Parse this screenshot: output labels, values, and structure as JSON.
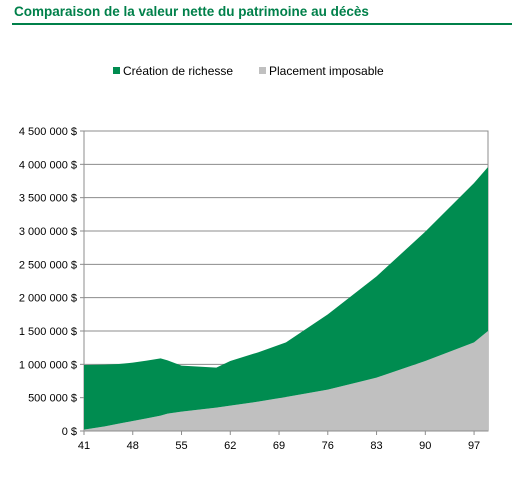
{
  "page": {
    "title": "Comparaison de la valeur nette du patrimoine au décès"
  },
  "chart_data": {
    "type": "area",
    "stacked": true,
    "x": [
      41,
      44,
      46,
      48,
      50,
      52,
      53,
      55,
      60,
      62,
      66,
      70,
      76,
      83,
      90,
      97,
      99
    ],
    "x_ticks": [
      "41",
      "48",
      "55",
      "62",
      "69",
      "76",
      "83",
      "90",
      "97"
    ],
    "series": [
      {
        "name": "Placement imposable",
        "color": "#c0c0c0",
        "values": [
          20000,
          70000,
          110000,
          150000,
          190000,
          230000,
          260000,
          290000,
          350000,
          380000,
          440000,
          510000,
          620000,
          800000,
          1050000,
          1330000,
          1500000
        ]
      },
      {
        "name": "Création de richesse",
        "color": "#008c50",
        "values": [
          970000,
          925000,
          895000,
          875000,
          865000,
          860000,
          800000,
          690000,
          600000,
          670000,
          740000,
          820000,
          1130000,
          1520000,
          1940000,
          2390000,
          2460000
        ]
      }
    ],
    "y_ticks": [
      "0 $",
      "500 000 $",
      "1 000 000 $",
      "1 500 000 $",
      "2 000 000 $",
      "2 500 000 $",
      "3 000 000 $",
      "3 500 000 $",
      "4 000 000 $",
      "4 500 000 $"
    ],
    "ylim": [
      0,
      4500000
    ],
    "xlim": [
      41,
      99
    ],
    "grid": true,
    "legend_position": "top"
  }
}
